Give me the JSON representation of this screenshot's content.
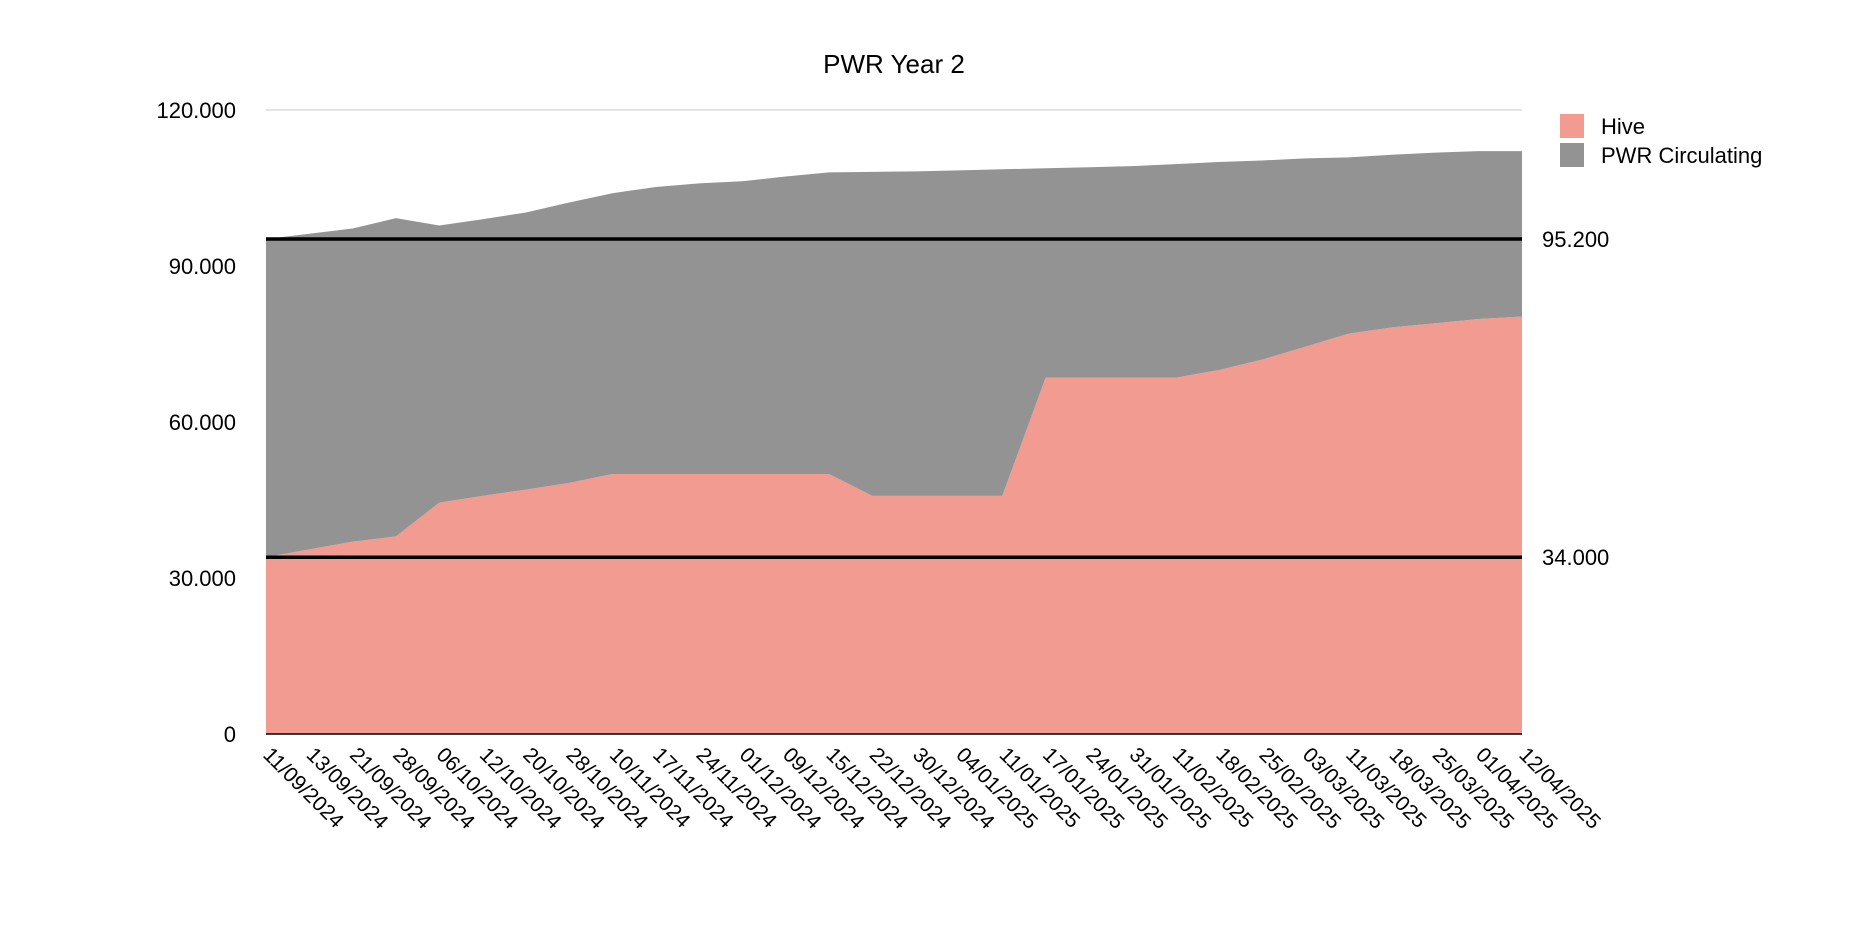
{
  "chart_data": {
    "type": "area",
    "stacked": true,
    "title": "PWR Year 2",
    "xlabel": "",
    "ylabel": "",
    "ylim": [
      0,
      120000
    ],
    "yticks": [
      0,
      30000,
      60000,
      90000,
      120000
    ],
    "ytick_labels": [
      "0",
      "30.000",
      "60.000",
      "90.000",
      "120.000"
    ],
    "grid": true,
    "legend_position": "top-right",
    "categories": [
      "11/09/2024",
      "13/09/2024",
      "21/09/2024",
      "28/09/2024",
      "06/10/2024",
      "12/10/2024",
      "20/10/2024",
      "28/10/2024",
      "10/11/2024",
      "17/11/2024",
      "24/11/2024",
      "01/12/2024",
      "09/12/2024",
      "15/12/2024",
      "22/12/2024",
      "30/12/2024",
      "04/01/2025",
      "11/01/2025",
      "17/01/2025",
      "24/01/2025",
      "31/01/2025",
      "11/02/2025",
      "18/02/2025",
      "25/02/2025",
      "03/03/2025",
      "11/03/2025",
      "18/03/2025",
      "25/03/2025",
      "01/04/2025",
      "12/04/2025"
    ],
    "series": [
      {
        "name": "Hive",
        "color": "#f29b90",
        "values": [
          34000,
          35500,
          37000,
          38000,
          44500,
          45800,
          47000,
          48300,
          50000,
          50000,
          50000,
          50000,
          50000,
          50000,
          45800,
          45800,
          45800,
          45800,
          68500,
          68500,
          68500,
          68500,
          70000,
          72000,
          74500,
          77000,
          78200,
          79000,
          79800,
          80300
        ]
      },
      {
        "name": "PWR Circulating",
        "color": "#939393",
        "values": [
          61200,
          60700,
          60200,
          61200,
          53300,
          53200,
          53300,
          53900,
          54000,
          55200,
          55900,
          56300,
          57200,
          58000,
          62300,
          62400,
          62600,
          62800,
          40300,
          40500,
          40700,
          41100,
          40000,
          38300,
          36200,
          33900,
          33200,
          32800,
          32300,
          31800
        ]
      }
    ],
    "reference_lines": [
      {
        "value": 95200,
        "label": "95.200",
        "color": "#000000"
      },
      {
        "value": 34000,
        "label": "34.000",
        "color": "#000000"
      }
    ]
  }
}
